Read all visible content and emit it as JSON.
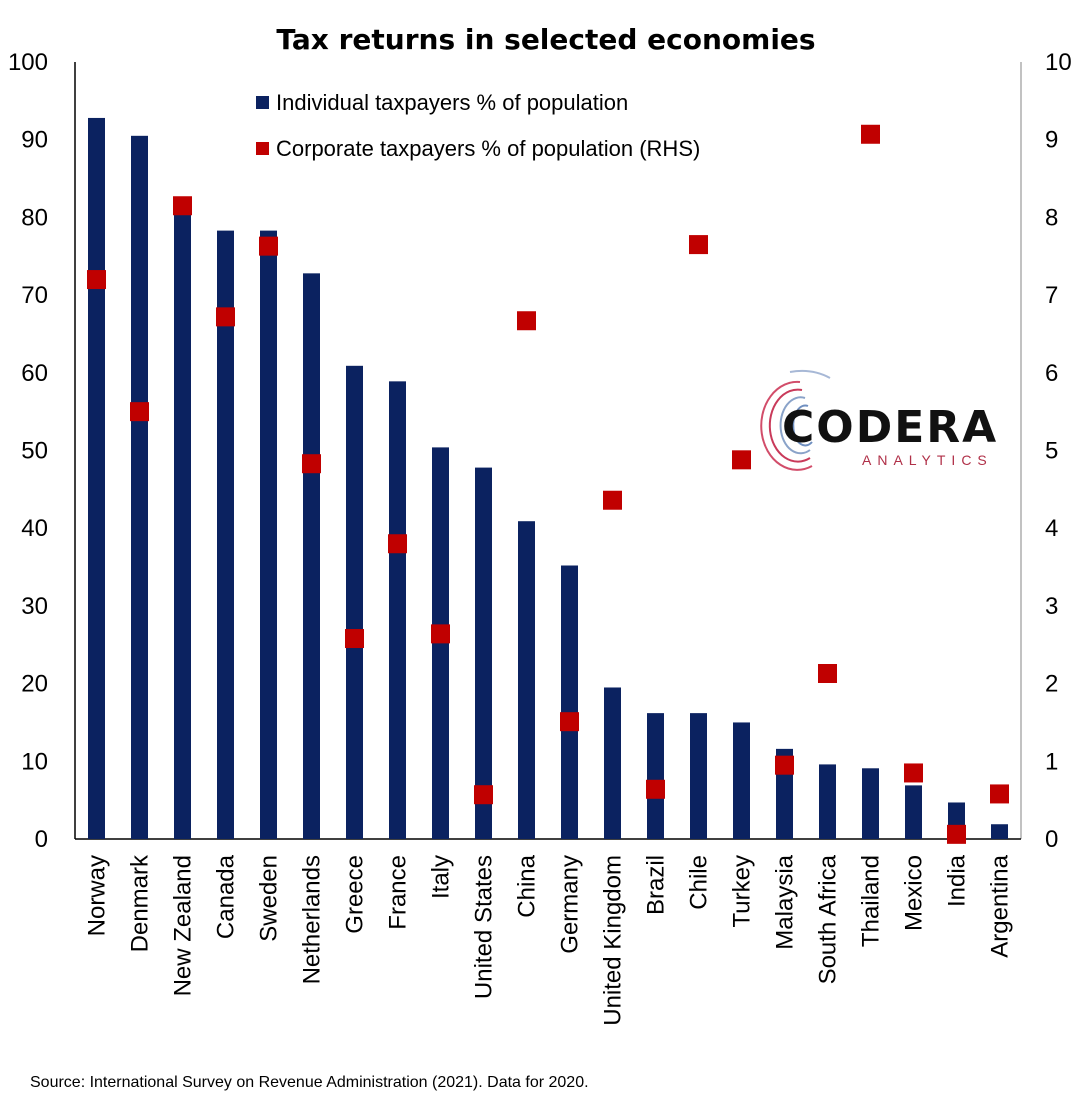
{
  "chart_data": {
    "type": "bar",
    "title": "Tax returns in selected economies",
    "categories": [
      "Norway",
      "Denmark",
      "New Zealand",
      "Canada",
      "Sweden",
      "Netherlands",
      "Greece",
      "France",
      "Italy",
      "United States",
      "China",
      "Germany",
      "United Kingdom",
      "Brazil",
      "Chile",
      "Turkey",
      "Malaysia",
      "South Africa",
      "Thailand",
      "Mexico",
      "India",
      "Argentina"
    ],
    "series": [
      {
        "name": "Individual taxpayers % of population",
        "axis": "left",
        "mark": "bar",
        "color": "#0b2260",
        "values": [
          92.8,
          90.5,
          81.0,
          78.3,
          78.3,
          72.8,
          60.9,
          58.9,
          50.4,
          47.8,
          40.9,
          35.2,
          19.5,
          16.2,
          16.2,
          15.0,
          11.6,
          9.6,
          9.1,
          6.9,
          4.7,
          1.9
        ]
      },
      {
        "name": "Corporate taxpayers % of population (RHS)",
        "axis": "right",
        "mark": "square",
        "color": "#c00000",
        "values": [
          7.2,
          5.5,
          8.15,
          6.72,
          7.63,
          4.83,
          2.58,
          3.8,
          2.64,
          0.57,
          6.67,
          1.51,
          4.36,
          0.64,
          7.65,
          4.88,
          0.95,
          2.13,
          9.07,
          0.85,
          0.06,
          0.58
        ]
      }
    ],
    "yaxis_left": {
      "min": 0,
      "max": 100,
      "ticks": [
        0,
        10,
        20,
        30,
        40,
        50,
        60,
        70,
        80,
        90,
        100
      ]
    },
    "yaxis_right": {
      "min": 0,
      "max": 10,
      "ticks": [
        0,
        1,
        2,
        3,
        4,
        5,
        6,
        7,
        8,
        9,
        10
      ]
    },
    "grid": false,
    "legend_position": "top-center"
  },
  "logo": {
    "main": "CODERA",
    "sub": "ANALYTICS"
  },
  "source": "Source: International Survey on Revenue Administration (2021). Data for 2020."
}
